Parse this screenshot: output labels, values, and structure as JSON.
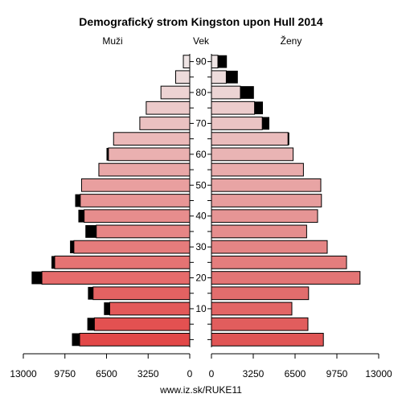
{
  "chart_data": {
    "type": "bar",
    "title": "Demografický strom Kingston upon Hull 2014",
    "left_label": "Muži",
    "center_label": "Vek",
    "right_label": "Ženy",
    "footer": "www.iz.sk/RUKE11",
    "xlim": [
      0,
      13000
    ],
    "x_ticks_left": [
      "13000",
      "9750",
      "6500",
      "3250",
      "0"
    ],
    "x_ticks_right": [
      "0",
      "3250",
      "6500",
      "9750",
      "13000"
    ],
    "x_tick_values": [
      0,
      3250,
      6500,
      9750,
      13000
    ],
    "age_tick_labels": [
      "10",
      "20",
      "30",
      "40",
      "50",
      "60",
      "70",
      "80",
      "90"
    ],
    "age_groups": [
      "0-4",
      "5-9",
      "10-14",
      "15-19",
      "20-24",
      "25-29",
      "30-34",
      "35-39",
      "40-44",
      "45-49",
      "50-54",
      "55-59",
      "60-64",
      "65-69",
      "70-74",
      "75-79",
      "80-84",
      "85-89",
      "90+"
    ],
    "series": [
      {
        "side": "left",
        "color_base": "#e04848",
        "values": [
          8600,
          7450,
          6250,
          7550,
          11550,
          10550,
          9050,
          7300,
          8250,
          8550,
          8450,
          7100,
          6350,
          5950,
          3900,
          3400,
          2250,
          1100,
          500
        ],
        "excess": [
          600,
          550,
          450,
          400,
          800,
          250,
          300,
          850,
          450,
          400,
          0,
          0,
          150,
          0,
          0,
          0,
          0,
          0,
          0
        ]
      },
      {
        "side": "right",
        "color_base": "#e04848",
        "values": [
          8700,
          7500,
          6250,
          7550,
          11550,
          10500,
          9000,
          7400,
          8250,
          8550,
          8500,
          7150,
          6350,
          5950,
          3950,
          3350,
          2250,
          1150,
          500
        ],
        "excess": [
          0,
          0,
          0,
          0,
          0,
          0,
          0,
          0,
          0,
          0,
          0,
          0,
          0,
          100,
          550,
          650,
          1050,
          900,
          700
        ]
      }
    ]
  }
}
